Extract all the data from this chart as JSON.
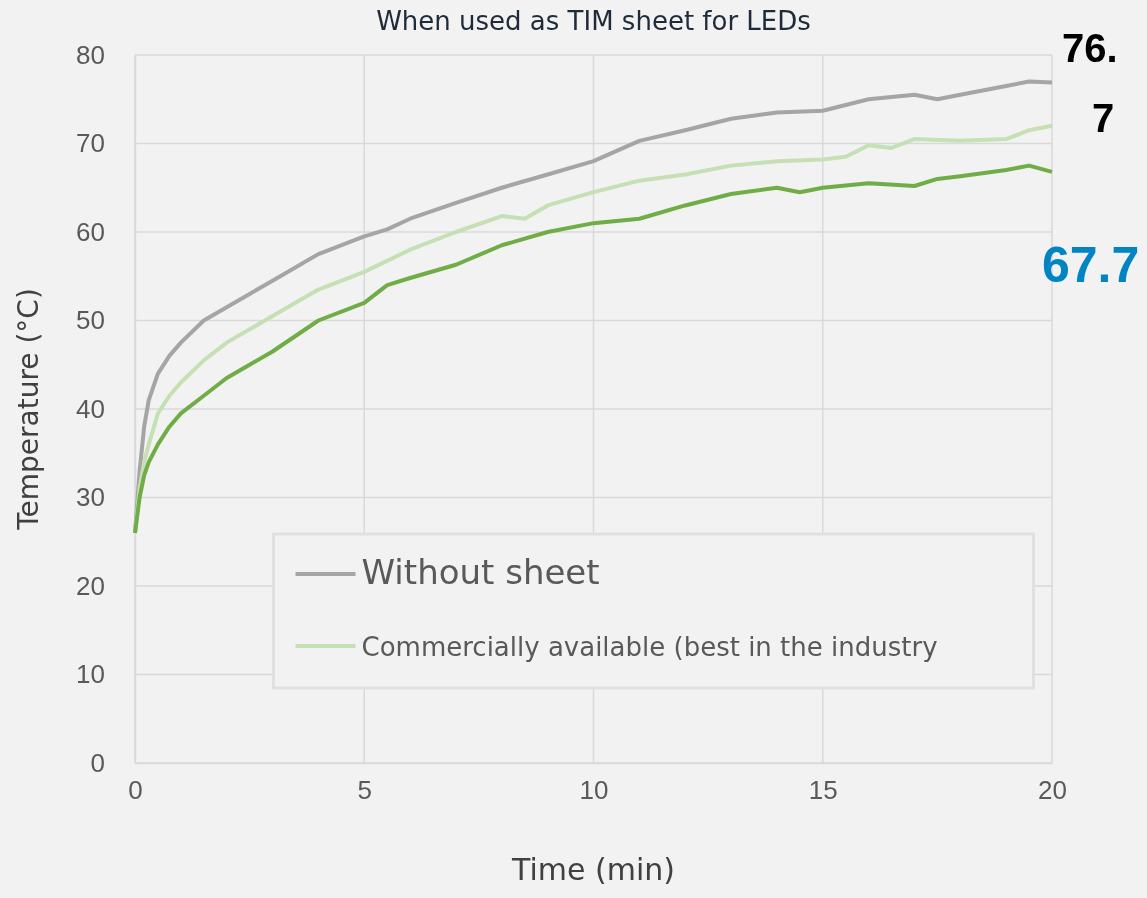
{
  "chart_data": {
    "type": "line",
    "title": "When used as TIM sheet for LEDs",
    "xlabel": "Time (min)",
    "ylabel": "Temperature (°C)",
    "xlim": [
      0,
      20
    ],
    "xticks": [
      0,
      5,
      10,
      15,
      20
    ],
    "ylim": [
      0,
      80
    ],
    "yticks": [
      0,
      10,
      20,
      30,
      40,
      50,
      60,
      70,
      80
    ],
    "grid": true,
    "legend": "bottom",
    "line_style": "solid",
    "marker": "none",
    "annotations": [
      "76.",
      "7",
      "67.7"
    ],
    "series": [
      {
        "name": "Without sheet",
        "color": "#a5a5a5",
        "x": [
          0,
          0.1,
          0.2,
          0.3,
          0.5,
          0.75,
          1,
          1.5,
          2,
          2.5,
          3,
          4,
          5,
          5.5,
          6,
          7,
          8,
          9,
          10,
          11,
          12,
          13,
          14,
          15,
          16,
          17,
          17.5,
          18,
          19,
          19.5,
          20
        ],
        "values": [
          26,
          33,
          38,
          41,
          44,
          46,
          47.5,
          50,
          51.5,
          53,
          54.5,
          57.5,
          59.5,
          60.3,
          61.5,
          63.3,
          65,
          66.5,
          68,
          70.3,
          71.5,
          72.8,
          73.5,
          73.7,
          75,
          75.5,
          75,
          75.5,
          76.5,
          77,
          76.9
        ]
      },
      {
        "name": "Commercially available (best in the industry",
        "color": "#c5e0b4",
        "x": [
          0,
          0.1,
          0.2,
          0.3,
          0.5,
          0.75,
          1,
          1.5,
          2,
          2.5,
          3,
          4,
          5,
          6,
          7,
          8,
          8.5,
          9,
          10,
          11,
          12,
          13,
          14,
          15,
          15.5,
          16,
          16.5,
          17,
          18,
          19,
          19.5,
          20
        ],
        "values": [
          26,
          31,
          34,
          36,
          39.5,
          41.5,
          43,
          45.5,
          47.5,
          49,
          50.5,
          53.5,
          55.5,
          58,
          60,
          61.8,
          61.5,
          63,
          64.5,
          65.8,
          66.5,
          67.5,
          68,
          68.2,
          68.5,
          69.8,
          69.5,
          70.5,
          70.3,
          70.5,
          71.5,
          72
        ]
      },
      {
        "color": "#70ad47",
        "x": [
          0,
          0.1,
          0.2,
          0.3,
          0.5,
          0.75,
          1,
          1.5,
          2,
          2.5,
          3,
          4,
          5,
          5.5,
          6,
          7,
          8,
          9,
          10,
          11,
          12,
          13,
          14,
          14.5,
          15,
          16,
          17,
          17.5,
          18,
          19,
          19.5,
          20
        ],
        "values": [
          26,
          30,
          32.5,
          34,
          36,
          38,
          39.5,
          41.5,
          43.5,
          45,
          46.5,
          50,
          52,
          54,
          54.8,
          56.3,
          58.5,
          60,
          61,
          61.5,
          63,
          64.3,
          65,
          64.5,
          65,
          65.5,
          65.2,
          66,
          66.3,
          67,
          67.5,
          66.8
        ]
      }
    ]
  }
}
